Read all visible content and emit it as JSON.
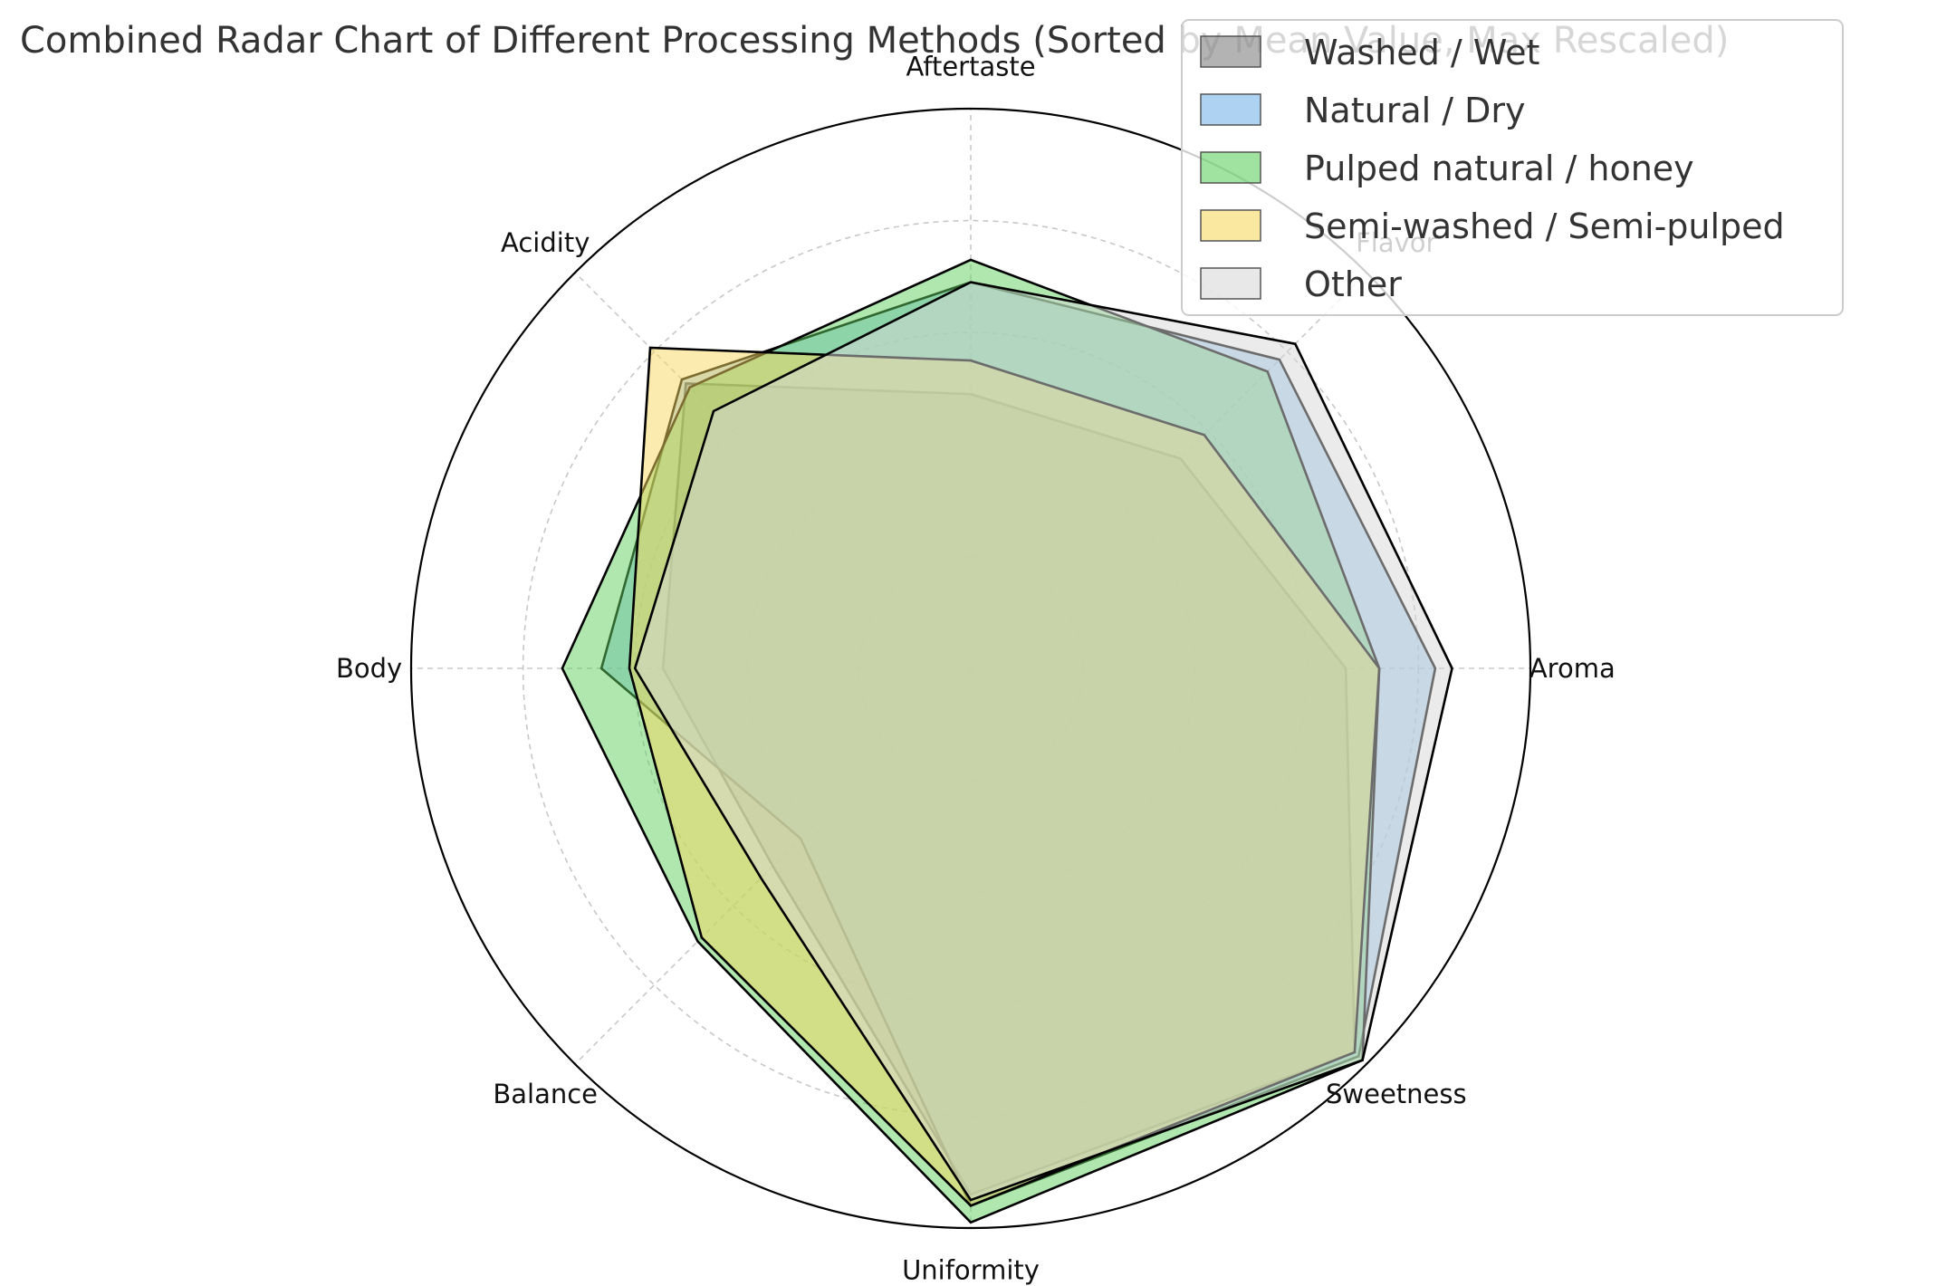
{
  "chart_data": {
    "type": "radar",
    "title": "Combined Radar Chart of Different Processing Methods (Sorted by Mean Value, Max Rescaled)",
    "axes": [
      "Aroma",
      "Flavor",
      "Aftertaste",
      "Acidity",
      "Body",
      "Balance",
      "Uniformity",
      "Sweetness"
    ],
    "rmax": 1.0,
    "grid_rings": [
      0.2,
      0.4,
      0.6,
      0.8
    ],
    "grid": true,
    "legend_position": "top-right",
    "series": [
      {
        "name": "Washed / Wet",
        "color": "#808080",
        "opacity": 0.5,
        "values": [
          0.67,
          0.53,
          0.49,
          0.72,
          0.55,
          0.5,
          0.94,
          0.97
        ]
      },
      {
        "name": "Natural / Dry",
        "color": "#78b4e8",
        "opacity": 0.5,
        "values": [
          0.83,
          0.78,
          0.69,
          0.73,
          0.66,
          0.43,
          0.96,
          0.98
        ]
      },
      {
        "name": "Pulped natural / honey",
        "color": "#60d060",
        "opacity": 0.5,
        "values": [
          0.73,
          0.75,
          0.73,
          0.71,
          0.73,
          0.69,
          0.99,
          0.99
        ]
      },
      {
        "name": "Semi-washed / Semi-pulped",
        "color": "#f8d860",
        "opacity": 0.5,
        "values": [
          0.73,
          0.59,
          0.55,
          0.81,
          0.61,
          0.68,
          0.96,
          0.97
        ]
      },
      {
        "name": "Other",
        "color": "#d8d8d8",
        "opacity": 0.5,
        "values": [
          0.86,
          0.82,
          0.69,
          0.65,
          0.6,
          0.53,
          0.95,
          0.99
        ]
      }
    ]
  }
}
